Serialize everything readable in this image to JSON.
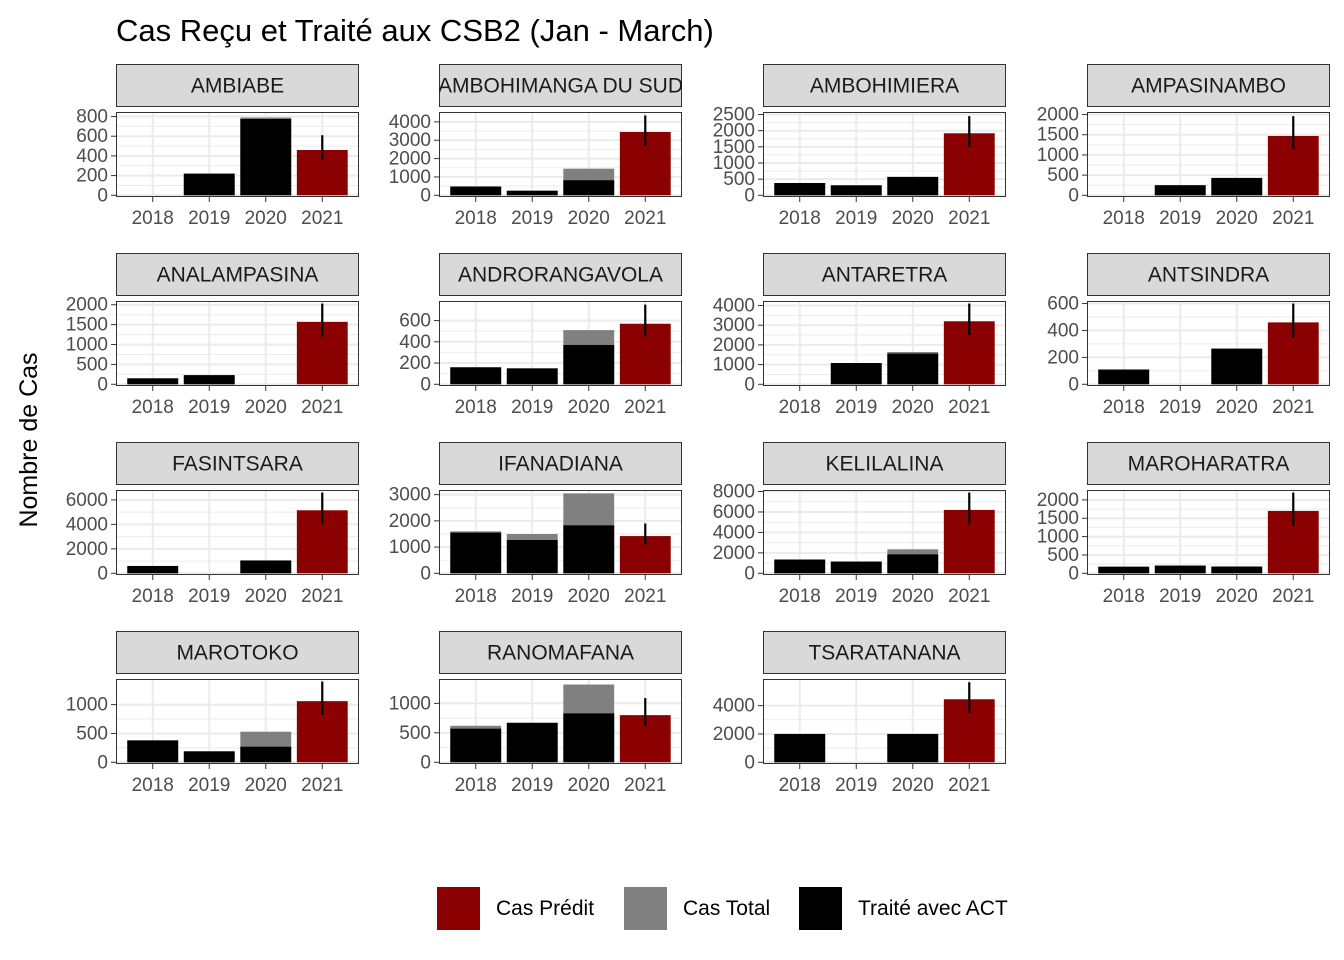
{
  "chart_data": {
    "type": "bar",
    "title": "Cas Reçu et Traité aux CSB2 (Jan - March)",
    "ylabel": "Nombre de Cas",
    "xlabel": "",
    "categories": [
      "2018",
      "2019",
      "2020",
      "2021"
    ],
    "grid": true,
    "legend_position": "bottom",
    "legend": [
      {
        "label": "Cas Prédit",
        "color": "#8B0000"
      },
      {
        "label": "Cas Total",
        "color": "#808080"
      },
      {
        "label": "Traité avec ACT",
        "color": "#000000"
      }
    ],
    "colors": {
      "predicted": "#8B0000",
      "total": "#808080",
      "treated": "#000000",
      "strip_bg": "#d9d9d9",
      "grid": "#ebebeb"
    },
    "panels": [
      {
        "name": "AMBIABE",
        "ylim": [
          0,
          820
        ],
        "yticks": [
          0,
          200,
          400,
          600,
          800
        ],
        "total": [
          0,
          220,
          790,
          null
        ],
        "treated": [
          0,
          220,
          775,
          null
        ],
        "predicted": [
          null,
          null,
          null,
          460
        ],
        "pred_low": [
          null,
          null,
          null,
          360
        ],
        "pred_high": [
          null,
          null,
          null,
          610
        ]
      },
      {
        "name": "AMBOHIMANGA DU SUD",
        "ylim": [
          0,
          4400
        ],
        "yticks": [
          0,
          1000,
          2000,
          3000,
          4000
        ],
        "total": [
          480,
          250,
          1450,
          null
        ],
        "treated": [
          480,
          250,
          820,
          null
        ],
        "predicted": [
          null,
          null,
          null,
          3450
        ],
        "pred_low": [
          null,
          null,
          null,
          2700
        ],
        "pred_high": [
          null,
          null,
          null,
          4350
        ]
      },
      {
        "name": "AMBOHIMIERA",
        "ylim": [
          0,
          2500
        ],
        "yticks": [
          0,
          500,
          1000,
          1500,
          2000,
          2500
        ],
        "total": [
          380,
          310,
          570,
          null
        ],
        "treated": [
          380,
          310,
          570,
          null
        ],
        "predicted": [
          null,
          null,
          null,
          1920
        ],
        "pred_low": [
          null,
          null,
          null,
          1500
        ],
        "pred_high": [
          null,
          null,
          null,
          2450
        ]
      },
      {
        "name": "AMPASINAMBO",
        "ylim": [
          0,
          2000
        ],
        "yticks": [
          0,
          500,
          1000,
          1500,
          2000
        ],
        "total": [
          0,
          250,
          430,
          null
        ],
        "treated": [
          0,
          250,
          430,
          null
        ],
        "predicted": [
          null,
          null,
          null,
          1470
        ],
        "pred_low": [
          null,
          null,
          null,
          1150
        ],
        "pred_high": [
          null,
          null,
          null,
          1960
        ]
      },
      {
        "name": "ANALAMPASINA",
        "ylim": [
          0,
          2030
        ],
        "yticks": [
          0,
          500,
          1000,
          1500,
          2000
        ],
        "total": [
          150,
          230,
          0,
          null
        ],
        "treated": [
          150,
          230,
          0,
          null
        ],
        "predicted": [
          null,
          null,
          null,
          1570
        ],
        "pred_low": [
          null,
          null,
          null,
          1200
        ],
        "pred_high": [
          null,
          null,
          null,
          2030
        ]
      },
      {
        "name": "ANDRORANGAVOLA",
        "ylim": [
          0,
          760
        ],
        "yticks": [
          0,
          200,
          400,
          600
        ],
        "total": [
          160,
          150,
          510,
          null
        ],
        "treated": [
          160,
          150,
          370,
          null
        ],
        "predicted": [
          null,
          null,
          null,
          570
        ],
        "pred_low": [
          null,
          null,
          null,
          450
        ],
        "pred_high": [
          null,
          null,
          null,
          750
        ]
      },
      {
        "name": "ANTARETRA",
        "ylim": [
          0,
          4100
        ],
        "yticks": [
          0,
          1000,
          2000,
          3000,
          4000
        ],
        "total": [
          0,
          1080,
          1640,
          null
        ],
        "treated": [
          0,
          1080,
          1560,
          null
        ],
        "predicted": [
          null,
          null,
          null,
          3200
        ],
        "pred_low": [
          null,
          null,
          null,
          2500
        ],
        "pred_high": [
          null,
          null,
          null,
          4100
        ]
      },
      {
        "name": "ANTSINDRA",
        "ylim": [
          0,
          600
        ],
        "yticks": [
          0,
          200,
          400,
          600
        ],
        "total": [
          110,
          0,
          265,
          null
        ],
        "treated": [
          110,
          0,
          265,
          null
        ],
        "predicted": [
          null,
          null,
          null,
          460
        ],
        "pred_low": [
          null,
          null,
          null,
          350
        ],
        "pred_high": [
          null,
          null,
          null,
          600
        ]
      },
      {
        "name": "FASINTSARA",
        "ylim": [
          0,
          6600
        ],
        "yticks": [
          0,
          2000,
          4000,
          6000
        ],
        "total": [
          600,
          0,
          1050,
          null
        ],
        "treated": [
          600,
          0,
          1050,
          null
        ],
        "predicted": [
          null,
          null,
          null,
          5150
        ],
        "pred_low": [
          null,
          null,
          null,
          4000
        ],
        "pred_high": [
          null,
          null,
          null,
          6600
        ]
      },
      {
        "name": "IFANADIANA",
        "ylim": [
          0,
          3080
        ],
        "yticks": [
          0,
          1000,
          2000,
          3000
        ],
        "total": [
          1600,
          1500,
          3050,
          null
        ],
        "treated": [
          1550,
          1270,
          1830,
          null
        ],
        "predicted": [
          null,
          null,
          null,
          1420
        ],
        "pred_low": [
          null,
          null,
          null,
          1100
        ],
        "pred_high": [
          null,
          null,
          null,
          1900
        ]
      },
      {
        "name": "KELILALINA",
        "ylim": [
          0,
          7900
        ],
        "yticks": [
          0,
          2000,
          4000,
          6000,
          8000
        ],
        "total": [
          1350,
          1150,
          2350,
          null
        ],
        "treated": [
          1350,
          1150,
          1850,
          null
        ],
        "predicted": [
          null,
          null,
          null,
          6200
        ],
        "pred_low": [
          null,
          null,
          null,
          4800
        ],
        "pred_high": [
          null,
          null,
          null,
          7900
        ]
      },
      {
        "name": "MAROHARATRA",
        "ylim": [
          0,
          2200
        ],
        "yticks": [
          0,
          500,
          1000,
          1500,
          2000
        ],
        "total": [
          180,
          210,
          185,
          null
        ],
        "treated": [
          180,
          210,
          185,
          null
        ],
        "predicted": [
          null,
          null,
          null,
          1700
        ],
        "pred_low": [
          null,
          null,
          null,
          1300
        ],
        "pred_high": [
          null,
          null,
          null,
          2200
        ]
      },
      {
        "name": "MAROTOKO",
        "ylim": [
          0,
          1400
        ],
        "yticks": [
          0,
          500,
          1000
        ],
        "total": [
          380,
          190,
          530,
          null
        ],
        "treated": [
          380,
          190,
          270,
          null
        ],
        "predicted": [
          null,
          null,
          null,
          1060
        ],
        "pred_low": [
          null,
          null,
          null,
          820
        ],
        "pred_high": [
          null,
          null,
          null,
          1400
        ]
      },
      {
        "name": "RANOMAFANA",
        "ylim": [
          0,
          1370
        ],
        "yticks": [
          0,
          500,
          1000
        ],
        "total": [
          620,
          670,
          1320,
          null
        ],
        "treated": [
          570,
          670,
          830,
          null
        ],
        "predicted": [
          null,
          null,
          null,
          800
        ],
        "pred_low": [
          null,
          null,
          null,
          620
        ],
        "pred_high": [
          null,
          null,
          null,
          1090
        ]
      },
      {
        "name": "TSARATANANA",
        "ylim": [
          0,
          5700
        ],
        "yticks": [
          0,
          2000,
          4000
        ],
        "total": [
          2000,
          0,
          2000,
          null
        ],
        "treated": [
          2000,
          0,
          2000,
          null
        ],
        "predicted": [
          null,
          null,
          null,
          4450
        ],
        "pred_low": [
          null,
          null,
          null,
          3500
        ],
        "pred_high": [
          null,
          null,
          null,
          5650
        ]
      }
    ]
  }
}
